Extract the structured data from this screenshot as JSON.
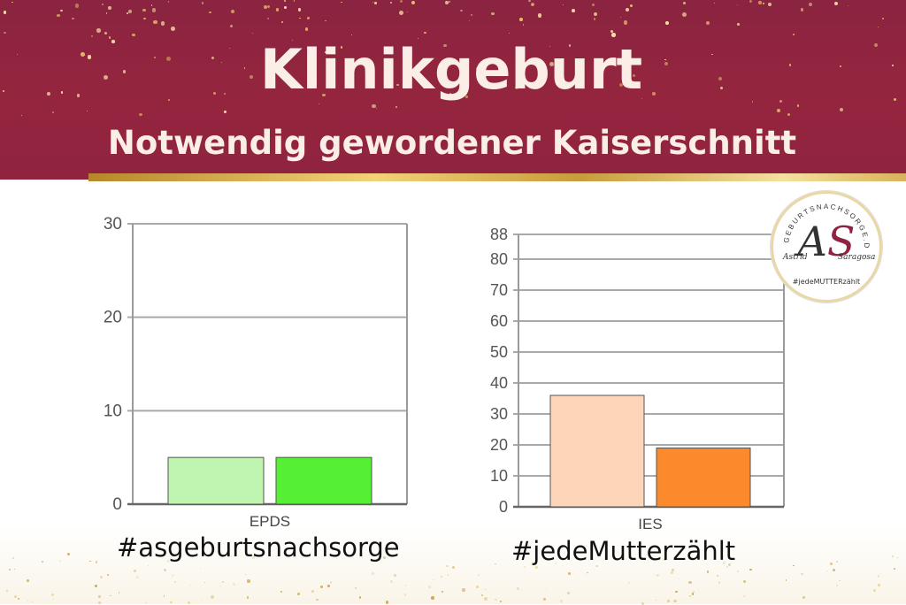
{
  "header": {
    "title": "Klinikgeburt",
    "subtitle": "Notwendig gewordener Kaiserschnitt"
  },
  "logo": {
    "ring_text": "GEBURTSNACHSORGE.DE",
    "monogram_a": "A",
    "monogram_s": "S",
    "name_first": "Astrid",
    "name_last": "Saragosa",
    "tag": "#jedeMUTTERzählt"
  },
  "hashtags": {
    "left": "#asgeburtsnachsorge",
    "right": "#jedeMutterzählt"
  },
  "colors": {
    "banner": "#8f2340",
    "gold": "#d9b25a",
    "epds_light": "#bff5b0",
    "epds_bright": "#55f033",
    "ies_light": "#fdd5b8",
    "ies_orange": "#fc8a2c"
  },
  "chart_data": [
    {
      "type": "bar",
      "categories": [
        "EPDS"
      ],
      "series": [
        {
          "values": [
            5
          ],
          "color": "#bff5b0"
        },
        {
          "values": [
            5
          ],
          "color": "#55f033"
        }
      ],
      "ylim": [
        0,
        30
      ],
      "yticks": [
        0,
        10,
        20,
        30
      ],
      "grid": true
    },
    {
      "type": "bar",
      "categories": [
        "IES"
      ],
      "series": [
        {
          "values": [
            36
          ],
          "color": "#fdd5b8"
        },
        {
          "values": [
            19
          ],
          "color": "#fc8a2c"
        }
      ],
      "ylim": [
        0,
        88
      ],
      "yticks": [
        0,
        10,
        20,
        30,
        40,
        50,
        60,
        70,
        80,
        88
      ],
      "grid": true
    }
  ]
}
